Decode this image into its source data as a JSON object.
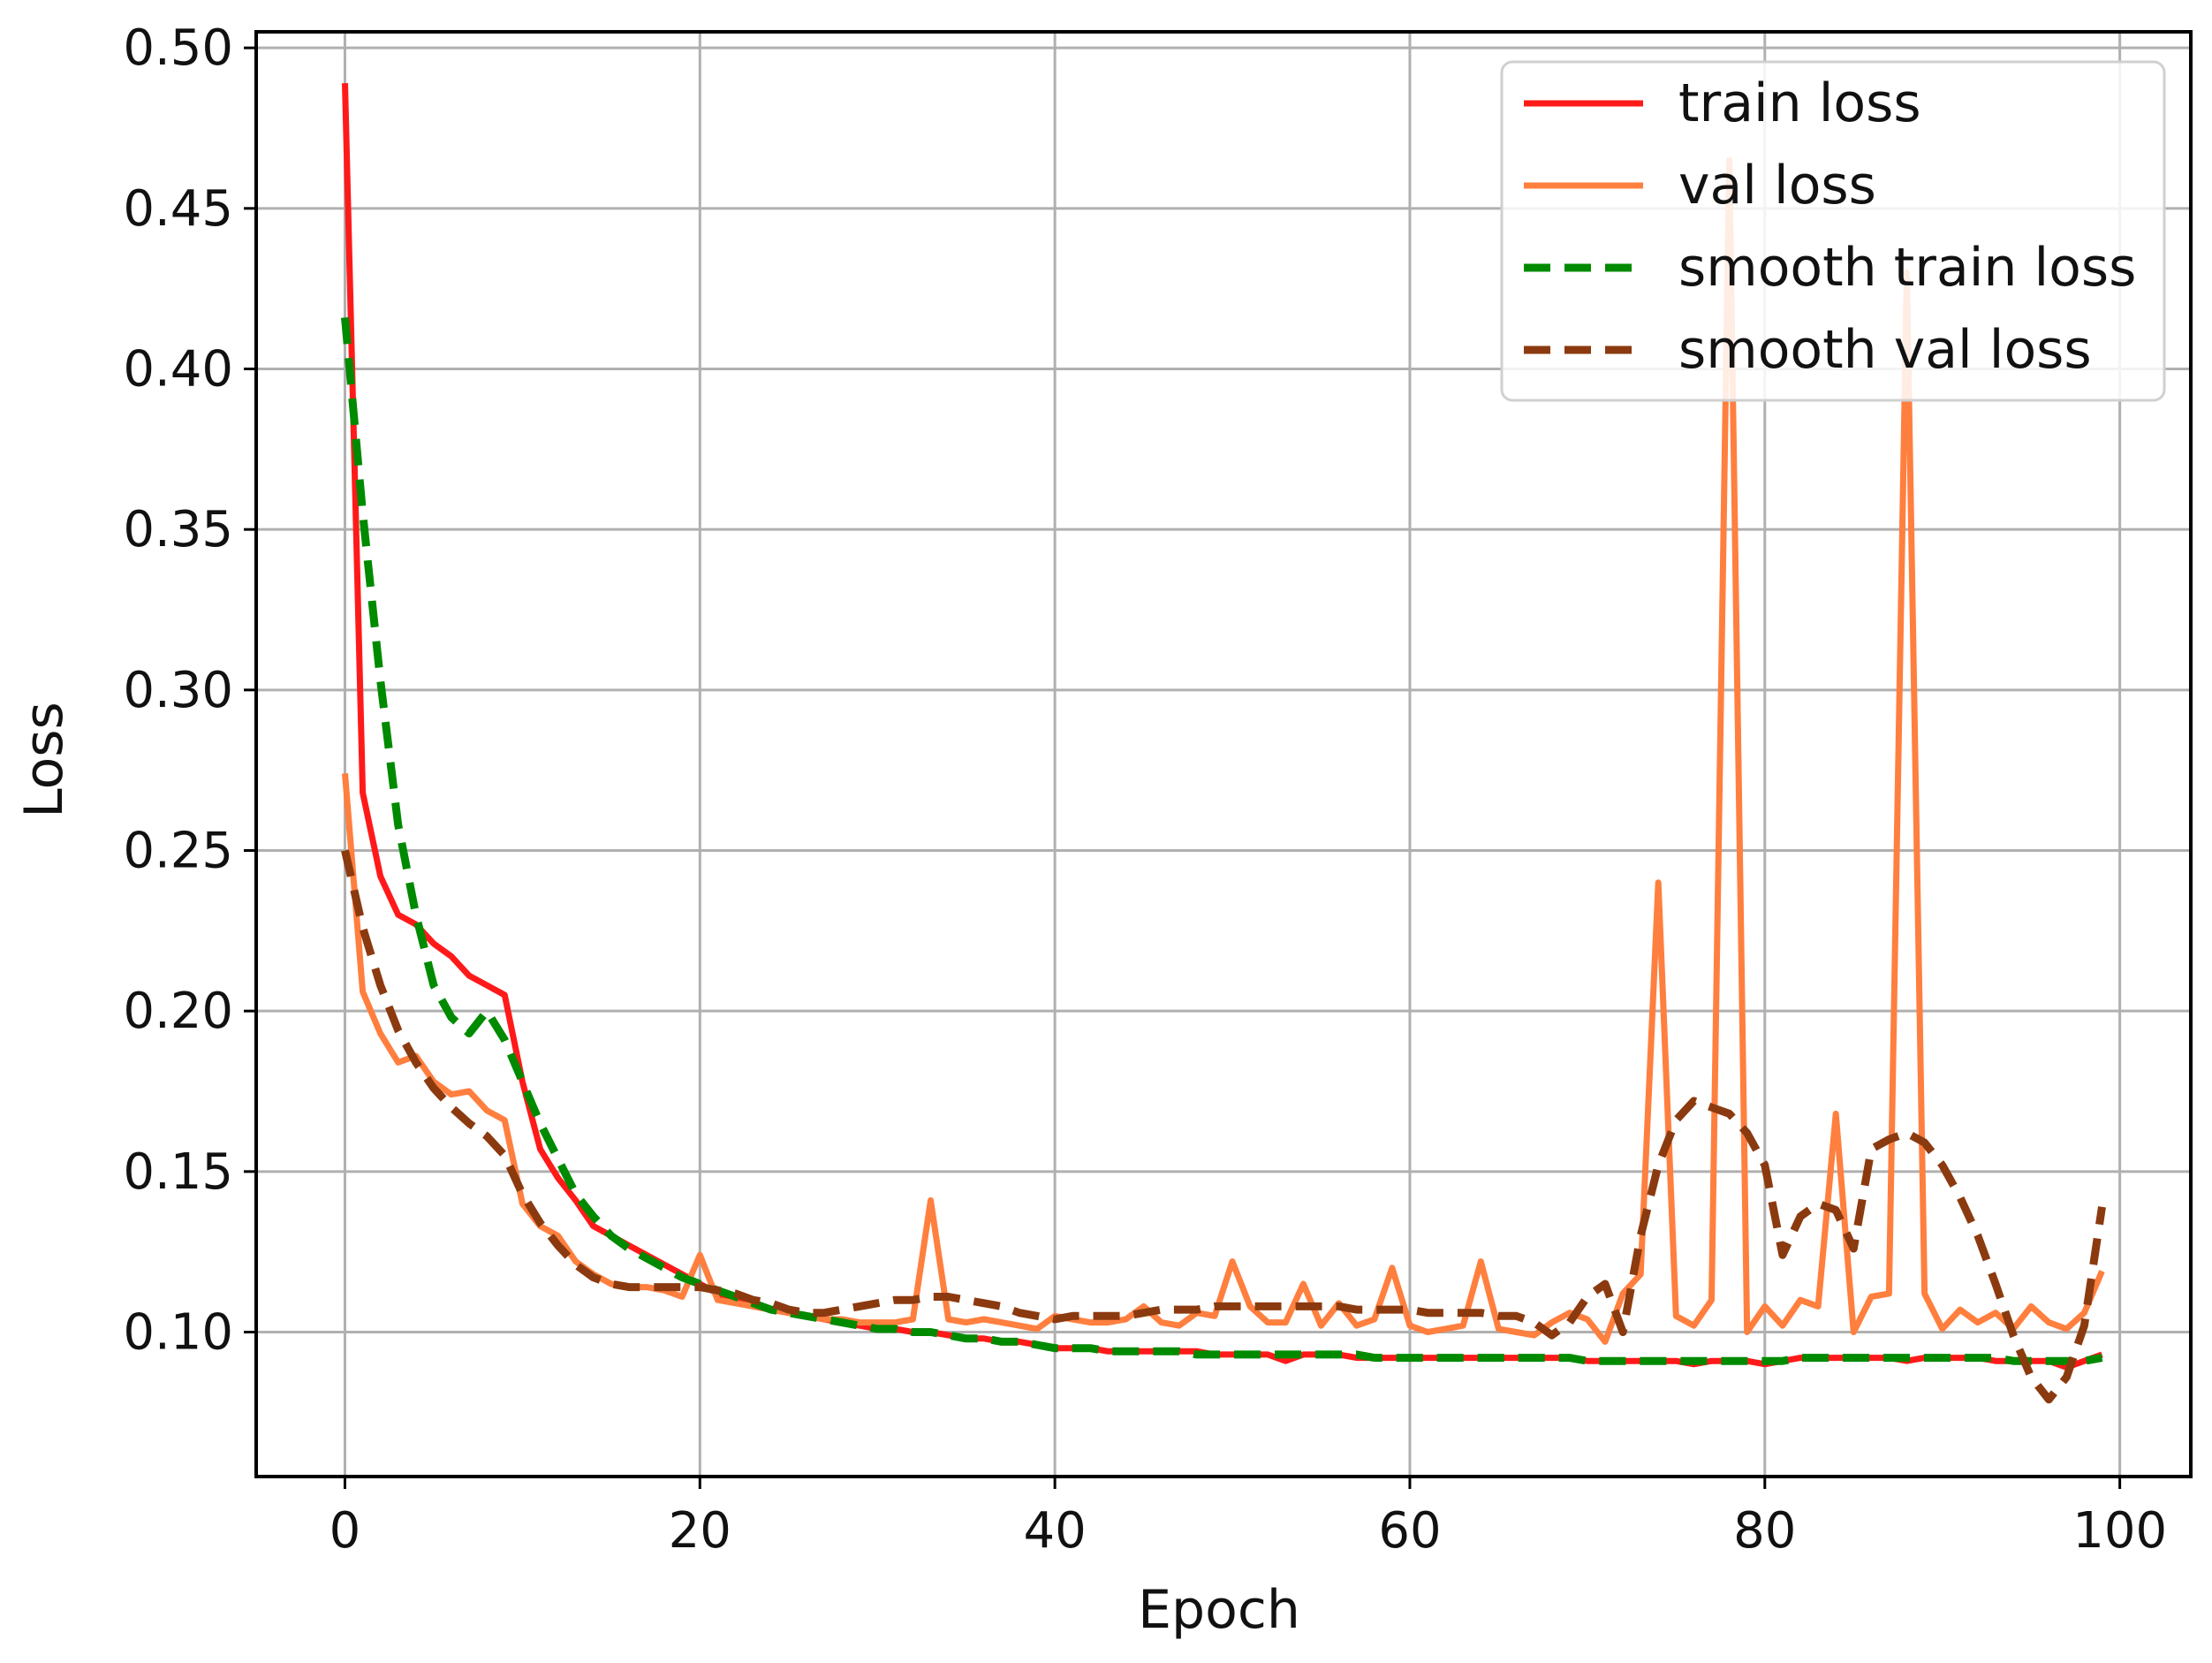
{
  "chart_data": {
    "type": "line",
    "title": "",
    "xlabel": "Epoch",
    "ylabel": "Loss",
    "xlim": [
      -5,
      104
    ],
    "ylim": [
      0.055,
      0.505
    ],
    "grid": true,
    "legend_position": "top-right",
    "x_ticks": [
      0,
      20,
      40,
      60,
      80,
      100
    ],
    "x_tick_labels": [
      "0",
      "20",
      "40",
      "60",
      "80",
      "100"
    ],
    "y_ticks": [
      0.1,
      0.15,
      0.2,
      0.25,
      0.3,
      0.35,
      0.4,
      0.45,
      0.5
    ],
    "y_tick_labels": [
      "0.10",
      "0.15",
      "0.20",
      "0.25",
      "0.30",
      "0.35",
      "0.40",
      "0.45",
      "0.50"
    ],
    "series": [
      {
        "name": "train loss",
        "color": "#ff1a1a",
        "dash": "solid",
        "x": [
          0,
          1,
          2,
          3,
          4,
          5,
          6,
          7,
          8,
          9,
          10,
          11,
          12,
          13,
          14,
          15,
          16,
          17,
          18,
          19,
          20,
          21,
          22,
          23,
          24,
          25,
          26,
          27,
          28,
          29,
          30,
          31,
          32,
          33,
          34,
          35,
          36,
          37,
          38,
          39,
          40,
          41,
          42,
          43,
          44,
          45,
          46,
          47,
          48,
          49,
          50,
          51,
          52,
          53,
          54,
          55,
          56,
          57,
          58,
          59,
          60,
          61,
          62,
          63,
          64,
          65,
          66,
          67,
          68,
          69,
          70,
          71,
          72,
          73,
          74,
          75,
          76,
          77,
          78,
          79,
          80,
          81,
          82,
          83,
          84,
          85,
          86,
          87,
          88,
          89,
          90,
          91,
          92,
          93,
          94,
          95,
          96,
          97,
          98,
          99
        ],
        "y": [
          0.489,
          0.268,
          0.242,
          0.23,
          0.227,
          0.221,
          0.217,
          0.211,
          0.208,
          0.205,
          0.178,
          0.157,
          0.148,
          0.141,
          0.133,
          0.13,
          0.127,
          0.124,
          0.121,
          0.118,
          0.115,
          0.112,
          0.11,
          0.108,
          0.107,
          0.106,
          0.105,
          0.104,
          0.103,
          0.102,
          0.101,
          0.101,
          0.1,
          0.1,
          0.099,
          0.098,
          0.098,
          0.097,
          0.097,
          0.096,
          0.095,
          0.095,
          0.095,
          0.094,
          0.094,
          0.094,
          0.094,
          0.094,
          0.094,
          0.093,
          0.093,
          0.093,
          0.093,
          0.091,
          0.093,
          0.093,
          0.093,
          0.092,
          0.092,
          0.092,
          0.092,
          0.092,
          0.092,
          0.092,
          0.092,
          0.092,
          0.092,
          0.092,
          0.092,
          0.092,
          0.091,
          0.091,
          0.091,
          0.091,
          0.091,
          0.091,
          0.09,
          0.091,
          0.091,
          0.091,
          0.09,
          0.091,
          0.092,
          0.092,
          0.092,
          0.092,
          0.092,
          0.092,
          0.091,
          0.092,
          0.092,
          0.092,
          0.092,
          0.091,
          0.091,
          0.091,
          0.091,
          0.089,
          0.091,
          0.093
        ]
      },
      {
        "name": "val loss",
        "color": "#ff7f3f",
        "dash": "solid",
        "x": [
          0,
          1,
          2,
          3,
          4,
          5,
          6,
          7,
          8,
          9,
          10,
          11,
          12,
          13,
          14,
          15,
          16,
          17,
          18,
          19,
          20,
          21,
          22,
          23,
          24,
          25,
          26,
          27,
          28,
          29,
          30,
          31,
          32,
          33,
          34,
          35,
          36,
          37,
          38,
          39,
          40,
          41,
          42,
          43,
          44,
          45,
          46,
          47,
          48,
          49,
          50,
          51,
          52,
          53,
          54,
          55,
          56,
          57,
          58,
          59,
          60,
          61,
          62,
          63,
          64,
          65,
          66,
          67,
          68,
          69,
          70,
          71,
          72,
          73,
          74,
          75,
          76,
          77,
          78,
          79,
          80,
          81,
          82,
          83,
          84,
          85,
          86,
          87,
          88,
          89,
          90,
          91,
          92,
          93,
          94,
          95,
          96,
          97,
          98,
          99
        ],
        "y": [
          0.274,
          0.206,
          0.193,
          0.184,
          0.186,
          0.178,
          0.174,
          0.175,
          0.169,
          0.166,
          0.14,
          0.133,
          0.13,
          0.122,
          0.118,
          0.115,
          0.114,
          0.114,
          0.113,
          0.111,
          0.124,
          0.11,
          0.109,
          0.108,
          0.107,
          0.106,
          0.105,
          0.104,
          0.104,
          0.103,
          0.103,
          0.103,
          0.104,
          0.141,
          0.104,
          0.103,
          0.104,
          0.103,
          0.102,
          0.101,
          0.105,
          0.104,
          0.103,
          0.103,
          0.104,
          0.108,
          0.103,
          0.102,
          0.106,
          0.105,
          0.122,
          0.108,
          0.103,
          0.103,
          0.115,
          0.102,
          0.109,
          0.102,
          0.104,
          0.12,
          0.102,
          0.1,
          0.101,
          0.102,
          0.122,
          0.101,
          0.1,
          0.099,
          0.103,
          0.106,
          0.104,
          0.097,
          0.112,
          0.118,
          0.24,
          0.105,
          0.102,
          0.11,
          0.465,
          0.1,
          0.108,
          0.102,
          0.11,
          0.108,
          0.168,
          0.1,
          0.111,
          0.112,
          0.43,
          0.112,
          0.101,
          0.107,
          0.103,
          0.106,
          0.101,
          0.108,
          0.103,
          0.101,
          0.106,
          0.119
        ]
      },
      {
        "name": "smooth train loss",
        "color": "#008a00",
        "dash": "dashed",
        "x": [
          0,
          1,
          2,
          3,
          4,
          5,
          6,
          7,
          8,
          9,
          10,
          11,
          12,
          13,
          14,
          15,
          16,
          17,
          18,
          19,
          20,
          21,
          22,
          23,
          24,
          25,
          26,
          27,
          28,
          29,
          30,
          31,
          32,
          33,
          34,
          35,
          36,
          37,
          38,
          39,
          40,
          41,
          42,
          43,
          44,
          45,
          46,
          47,
          48,
          49,
          50,
          51,
          52,
          53,
          54,
          55,
          56,
          57,
          58,
          59,
          60,
          61,
          62,
          63,
          64,
          65,
          66,
          67,
          68,
          69,
          70,
          71,
          72,
          73,
          74,
          75,
          76,
          77,
          78,
          79,
          80,
          81,
          82,
          83,
          84,
          85,
          86,
          87,
          88,
          89,
          90,
          91,
          92,
          93,
          94,
          95,
          96,
          97,
          98,
          99
        ],
        "y": [
          0.416,
          0.355,
          0.303,
          0.258,
          0.23,
          0.208,
          0.198,
          0.193,
          0.2,
          0.191,
          0.178,
          0.165,
          0.154,
          0.143,
          0.136,
          0.13,
          0.126,
          0.123,
          0.12,
          0.117,
          0.115,
          0.113,
          0.111,
          0.109,
          0.107,
          0.106,
          0.105,
          0.104,
          0.103,
          0.102,
          0.101,
          0.101,
          0.1,
          0.1,
          0.099,
          0.098,
          0.098,
          0.097,
          0.097,
          0.096,
          0.095,
          0.095,
          0.095,
          0.094,
          0.094,
          0.094,
          0.094,
          0.094,
          0.093,
          0.093,
          0.093,
          0.093,
          0.093,
          0.093,
          0.093,
          0.093,
          0.093,
          0.093,
          0.092,
          0.092,
          0.092,
          0.092,
          0.092,
          0.092,
          0.092,
          0.092,
          0.092,
          0.092,
          0.092,
          0.092,
          0.091,
          0.091,
          0.091,
          0.091,
          0.091,
          0.091,
          0.091,
          0.091,
          0.091,
          0.091,
          0.091,
          0.091,
          0.092,
          0.092,
          0.092,
          0.092,
          0.092,
          0.092,
          0.092,
          0.092,
          0.092,
          0.092,
          0.092,
          0.092,
          0.091,
          0.091,
          0.091,
          0.091,
          0.091,
          0.092
        ]
      },
      {
        "name": "smooth val loss",
        "color": "#8b3a0f",
        "dash": "dashed",
        "x": [
          0,
          1,
          2,
          3,
          4,
          5,
          6,
          7,
          8,
          9,
          10,
          11,
          12,
          13,
          14,
          15,
          16,
          17,
          18,
          19,
          20,
          21,
          22,
          23,
          24,
          25,
          26,
          27,
          28,
          29,
          30,
          31,
          32,
          33,
          34,
          35,
          36,
          37,
          38,
          39,
          40,
          41,
          42,
          43,
          44,
          45,
          46,
          47,
          48,
          49,
          50,
          51,
          52,
          53,
          54,
          55,
          56,
          57,
          58,
          59,
          60,
          61,
          62,
          63,
          64,
          65,
          66,
          67,
          68,
          69,
          70,
          71,
          72,
          73,
          74,
          75,
          76,
          77,
          78,
          79,
          80,
          81,
          82,
          83,
          84,
          85,
          86,
          87,
          88,
          89,
          90,
          91,
          92,
          93,
          94,
          95,
          96,
          97,
          98,
          99
        ],
        "y": [
          0.25,
          0.226,
          0.208,
          0.194,
          0.184,
          0.176,
          0.17,
          0.165,
          0.161,
          0.155,
          0.143,
          0.134,
          0.127,
          0.121,
          0.117,
          0.115,
          0.114,
          0.114,
          0.114,
          0.114,
          0.114,
          0.113,
          0.112,
          0.11,
          0.109,
          0.107,
          0.106,
          0.106,
          0.107,
          0.108,
          0.109,
          0.11,
          0.11,
          0.111,
          0.111,
          0.11,
          0.109,
          0.108,
          0.106,
          0.105,
          0.104,
          0.105,
          0.105,
          0.105,
          0.105,
          0.106,
          0.107,
          0.107,
          0.107,
          0.108,
          0.108,
          0.108,
          0.108,
          0.108,
          0.108,
          0.108,
          0.108,
          0.107,
          0.107,
          0.107,
          0.107,
          0.106,
          0.106,
          0.106,
          0.106,
          0.105,
          0.105,
          0.103,
          0.099,
          0.103,
          0.111,
          0.115,
          0.1,
          0.13,
          0.152,
          0.166,
          0.172,
          0.17,
          0.168,
          0.162,
          0.152,
          0.124,
          0.136,
          0.14,
          0.138,
          0.126,
          0.157,
          0.16,
          0.162,
          0.159,
          0.152,
          0.142,
          0.13,
          0.115,
          0.099,
          0.086,
          0.079,
          0.086,
          0.102,
          0.139
        ]
      }
    ]
  }
}
